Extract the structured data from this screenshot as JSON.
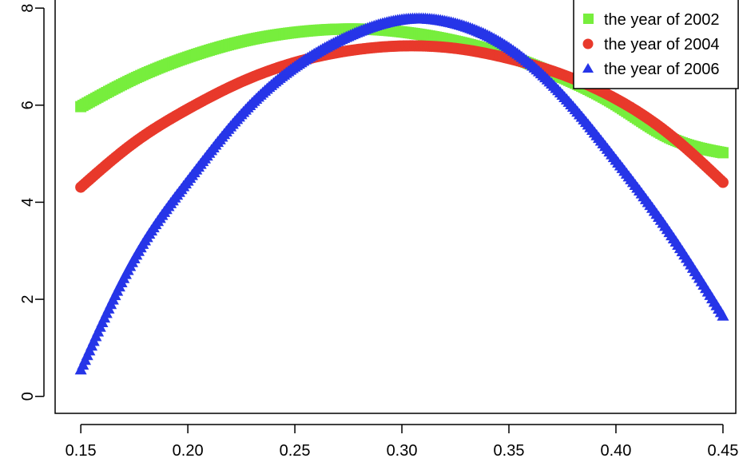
{
  "chart_data": {
    "type": "scatter",
    "title": "",
    "xlabel": "",
    "ylabel": "",
    "xlim": [
      0.138,
      0.456
    ],
    "ylim": [
      -0.35,
      8.2
    ],
    "x_ticks": [
      {
        "value": 0.15,
        "label": "0.15"
      },
      {
        "value": 0.2,
        "label": "0.20"
      },
      {
        "value": 0.25,
        "label": "0.25"
      },
      {
        "value": 0.3,
        "label": "0.30"
      },
      {
        "value": 0.35,
        "label": "0.35"
      },
      {
        "value": 0.4,
        "label": "0.40"
      },
      {
        "value": 0.45,
        "label": "0.45"
      }
    ],
    "y_ticks": [
      {
        "value": 0,
        "label": "0"
      },
      {
        "value": 2,
        "label": "2"
      },
      {
        "value": 4,
        "label": "4"
      },
      {
        "value": 6,
        "label": "6"
      },
      {
        "value": 8,
        "label": "8"
      }
    ],
    "grid": false,
    "legend_position": "top-right",
    "series": [
      {
        "name": "the year of 2002",
        "color": "#77ee3d",
        "marker": "square-icon",
        "x": [
          0.15,
          0.175,
          0.2,
          0.225,
          0.25,
          0.275,
          0.3,
          0.325,
          0.35,
          0.375,
          0.4,
          0.425,
          0.45
        ],
        "y": [
          5.97,
          6.55,
          6.99,
          7.31,
          7.5,
          7.57,
          7.51,
          7.32,
          7.01,
          6.57,
          6.01,
          5.33,
          5.02
        ]
      },
      {
        "name": "the year of 2004",
        "color": "#e8392b",
        "marker": "circle-icon",
        "x": [
          0.15,
          0.175,
          0.2,
          0.225,
          0.25,
          0.275,
          0.3,
          0.325,
          0.35,
          0.375,
          0.4,
          0.425,
          0.45
        ],
        "y": [
          4.31,
          5.23,
          5.92,
          6.48,
          6.88,
          7.12,
          7.22,
          7.17,
          6.96,
          6.63,
          6.13,
          5.4,
          4.41
        ]
      },
      {
        "name": "the year of 2006",
        "color": "#2635e8",
        "marker": "triangle-icon",
        "x": [
          0.15,
          0.175,
          0.2,
          0.225,
          0.25,
          0.275,
          0.3,
          0.325,
          0.35,
          0.375,
          0.4,
          0.425,
          0.45
        ],
        "y": [
          0.55,
          2.84,
          4.44,
          5.81,
          6.79,
          7.42,
          7.76,
          7.68,
          7.18,
          6.21,
          4.87,
          3.38,
          1.66
        ]
      }
    ]
  }
}
